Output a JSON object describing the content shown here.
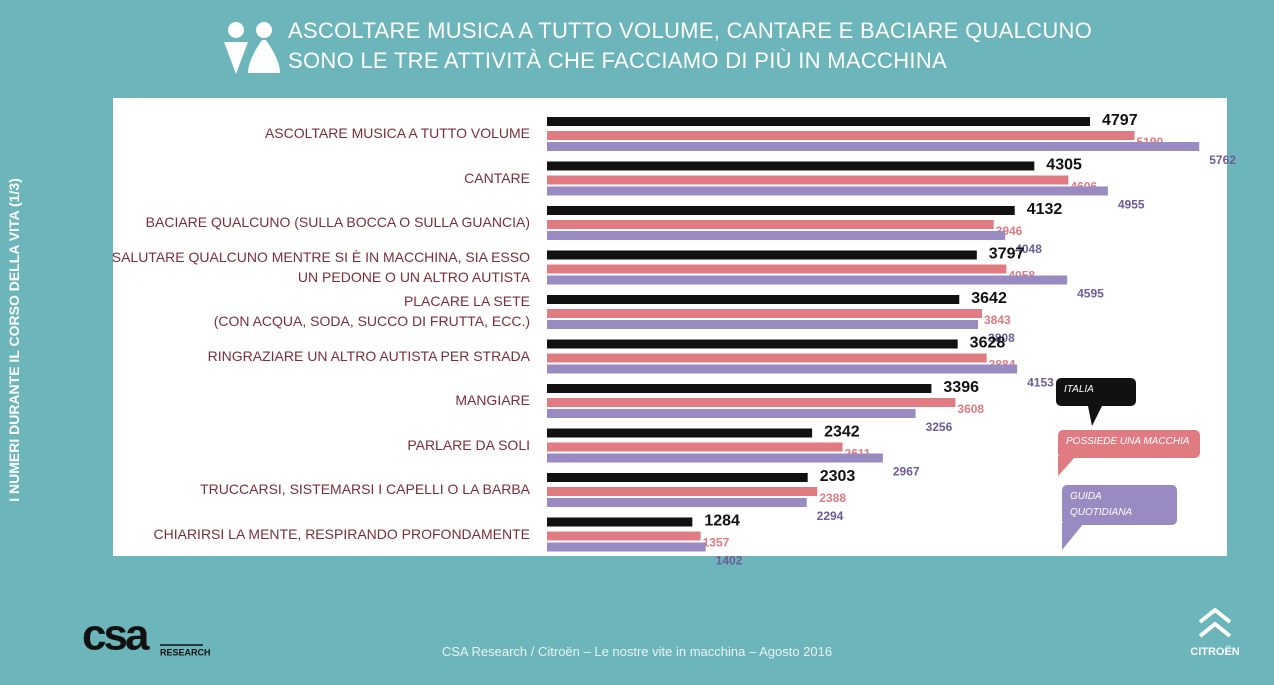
{
  "chart_data": {
    "type": "bar",
    "title": "ASCOLTARE MUSICA A TUTTO VOLUME, CANTARE E BACIARE QUALCUNO\nSONO LE TRE ATTIVITÀ CHE FACCIAMO DI PIÙ IN MACCHINA",
    "side_label": "I NUMERI DURANTE IL CORSO DELLA VITA (1/3)",
    "categories": [
      "ASCOLTARE MUSICA A TUTTO VOLUME",
      "CANTARE",
      "BACIARE QUALCUNO (SULLA BOCCA O SULLA GUANCIA)",
      "SALUTARE QUALCUNO MENTRE SI È IN MACCHINA, SIA ESSO\nUN PEDONE O UN ALTRO AUTISTA",
      "PLACARE LA SETE\n(CON ACQUA, SODA, SUCCO DI FRUTTA, ECC.)",
      "RINGRAZIARE UN ALTRO AUTISTA PER STRADA",
      "MANGIARE",
      "PARLARE DA SOLI",
      "TRUCCARSI, SISTEMARSI I CAPELLI O LA BARBA",
      "CHIARIRSI LA MENTE, RESPIRANDO PROFONDAMENTE"
    ],
    "series": [
      {
        "name": "ITALIA",
        "color": "#111111",
        "values": [
          4797,
          4305,
          4132,
          3797,
          3642,
          3628,
          3396,
          2342,
          2303,
          1284
        ]
      },
      {
        "name": "POSSIEDE UNA MACCHIA",
        "color": "#e07b82",
        "values": [
          5190,
          4606,
          3946,
          4058,
          3843,
          3884,
          3608,
          2611,
          2388,
          1357
        ]
      },
      {
        "name": "GUIDA QUOTIDIANAMENTE",
        "color": "#9a8ac2",
        "values": [
          5762,
          4955,
          4048,
          4595,
          3808,
          4153,
          3256,
          2967,
          2294,
          1402
        ]
      }
    ]
  },
  "footer": "CSA Research / Citroën –  Le nostre vite in macchina – Agosto 2016",
  "logos": {
    "csa": "csa",
    "research": "RESEARCH",
    "citroen": "CITROËN"
  }
}
